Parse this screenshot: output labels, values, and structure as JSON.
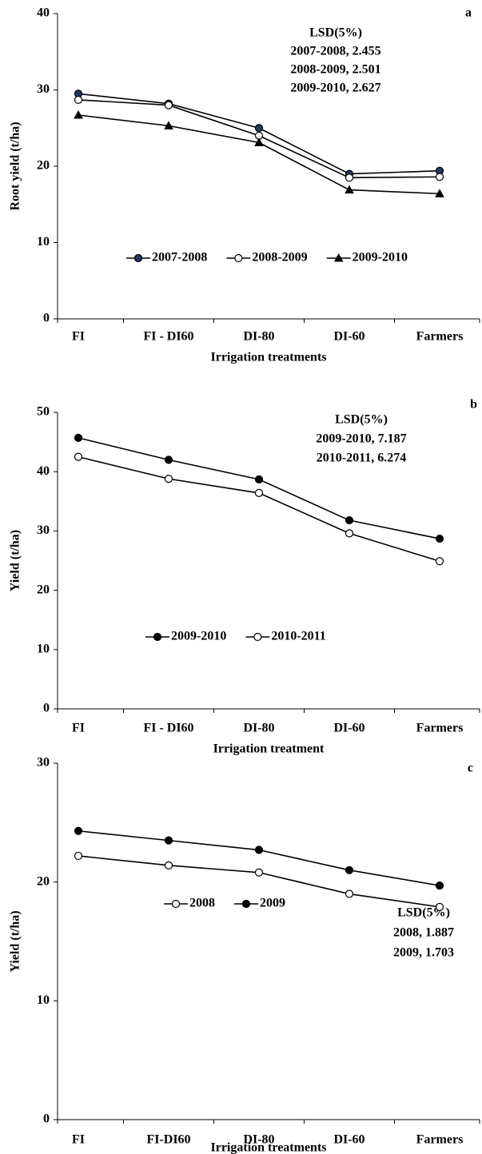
{
  "chart_data": [
    {
      "type": "line",
      "panel_label": "a",
      "y_label": "Root yield (t/ha)",
      "x_label": "Irrigation treatments",
      "categories": [
        "FI",
        "FI - DI60",
        "DI-80",
        "DI-60",
        "Farmers"
      ],
      "series": [
        {
          "name": "2007-2008",
          "color": "#1f3864",
          "marker": "circle-filled",
          "values": [
            29.5,
            28.2,
            25.0,
            19.0,
            19.4
          ]
        },
        {
          "name": "2008-2009",
          "color": "#ffffff",
          "marker": "circle-open",
          "values": [
            28.7,
            28.0,
            24.0,
            18.5,
            18.6
          ]
        },
        {
          "name": "2009-2010",
          "color": "#000000",
          "marker": "triangle",
          "values": [
            26.7,
            25.3,
            23.1,
            16.9,
            16.4
          ]
        }
      ],
      "ylim": [
        0,
        40
      ],
      "yticks": [
        0,
        10,
        20,
        30,
        40
      ],
      "lsd_title": "LSD(5%)",
      "lsd_lines": [
        "2007-2008, 2.455",
        "2008-2009, 2.501",
        "2009-2010, 2.627"
      ]
    },
    {
      "type": "line",
      "panel_label": "b",
      "y_label": "Yield (t/ha)",
      "x_label": "Irrigation treatment",
      "categories": [
        "FI",
        "FI - DI60",
        "DI-80",
        "DI-60",
        "Farmers"
      ],
      "series": [
        {
          "name": "2009-2010",
          "color": "#000000",
          "marker": "circle-filled",
          "values": [
            45.7,
            42.0,
            38.7,
            31.8,
            28.7
          ]
        },
        {
          "name": "2010-2011",
          "color": "#ffffff",
          "marker": "circle-open",
          "values": [
            42.5,
            38.8,
            36.4,
            29.6,
            24.9
          ]
        }
      ],
      "ylim": [
        0,
        50
      ],
      "yticks": [
        0,
        10,
        20,
        30,
        40,
        50
      ],
      "lsd_title": "LSD(5%)",
      "lsd_lines": [
        "2009-2010, 7.187",
        "2010-2011, 6.274"
      ]
    },
    {
      "type": "line",
      "panel_label": "c",
      "y_label": "Yield (t/ha)",
      "x_label": "Irrigation treatments",
      "categories": [
        "FI",
        "FI-DI60",
        "DI-80",
        "DI-60",
        "Farmers"
      ],
      "series": [
        {
          "name": "2008",
          "color": "#ffffff",
          "marker": "circle-open",
          "values": [
            22.2,
            21.4,
            20.8,
            19.0,
            17.9
          ]
        },
        {
          "name": "2009",
          "color": "#000000",
          "marker": "circle-filled",
          "values": [
            24.3,
            23.5,
            22.7,
            21.0,
            19.7
          ]
        }
      ],
      "ylim": [
        0,
        30
      ],
      "yticks": [
        0,
        10,
        20,
        30
      ],
      "lsd_title": "LSD(5%)",
      "lsd_lines": [
        "2008, 1.887",
        "2009, 1.703"
      ]
    }
  ]
}
